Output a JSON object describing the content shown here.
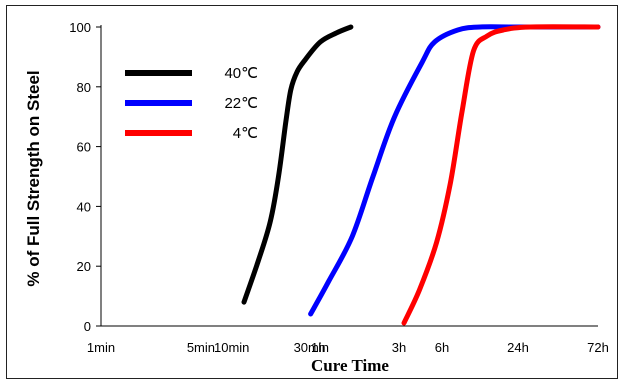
{
  "chart_data": {
    "type": "line",
    "xlabel": "Cure Time",
    "ylabel": "% of Full Strength on Steel",
    "x_scale": "log",
    "x_ticks": [
      "1min",
      "5min",
      "10min",
      "30min",
      "1h",
      "3h",
      "6h",
      "24h",
      "72h"
    ],
    "x_tick_minutes": [
      1,
      5,
      10,
      30,
      60,
      180,
      360,
      1440,
      4320
    ],
    "ylim": [
      0,
      100
    ],
    "y_ticks": [
      "0",
      "20",
      "40",
      "60",
      "80",
      "100"
    ],
    "y_tick_values": [
      0,
      20,
      40,
      60,
      80,
      100
    ],
    "legend_position": "top-left",
    "series": [
      {
        "name": "40℃",
        "color": "#000000",
        "points": [
          {
            "x_min": 11.5,
            "y": 8
          },
          {
            "x_min": 14.8,
            "y": 22
          },
          {
            "x_min": 18.2,
            "y": 35
          },
          {
            "x_min": 21,
            "y": 50
          },
          {
            "x_min": 23.8,
            "y": 68
          },
          {
            "x_min": 26,
            "y": 79
          },
          {
            "x_min": 29,
            "y": 85
          },
          {
            "x_min": 33,
            "y": 89
          },
          {
            "x_min": 42,
            "y": 95
          },
          {
            "x_min": 54,
            "y": 98
          },
          {
            "x_min": 70,
            "y": 100
          }
        ]
      },
      {
        "name": "22℃",
        "color": "#0000ff",
        "points": [
          {
            "x_min": 36,
            "y": 4
          },
          {
            "x_min": 48,
            "y": 15
          },
          {
            "x_min": 72,
            "y": 30
          },
          {
            "x_min": 108,
            "y": 50
          },
          {
            "x_min": 165,
            "y": 70
          },
          {
            "x_min": 260,
            "y": 88
          },
          {
            "x_min": 320,
            "y": 95
          },
          {
            "x_min": 480,
            "y": 99
          },
          {
            "x_min": 720,
            "y": 100
          },
          {
            "x_min": 1440,
            "y": 100
          },
          {
            "x_min": 4320,
            "y": 100
          }
        ]
      },
      {
        "name": "4℃",
        "color": "#ff0000",
        "points": [
          {
            "x_min": 195,
            "y": 1
          },
          {
            "x_min": 250,
            "y": 12
          },
          {
            "x_min": 330,
            "y": 28
          },
          {
            "x_min": 420,
            "y": 48
          },
          {
            "x_min": 520,
            "y": 72
          },
          {
            "x_min": 640,
            "y": 92
          },
          {
            "x_min": 820,
            "y": 97
          },
          {
            "x_min": 1100,
            "y": 99
          },
          {
            "x_min": 1700,
            "y": 100
          },
          {
            "x_min": 4320,
            "y": 100
          }
        ]
      }
    ]
  }
}
